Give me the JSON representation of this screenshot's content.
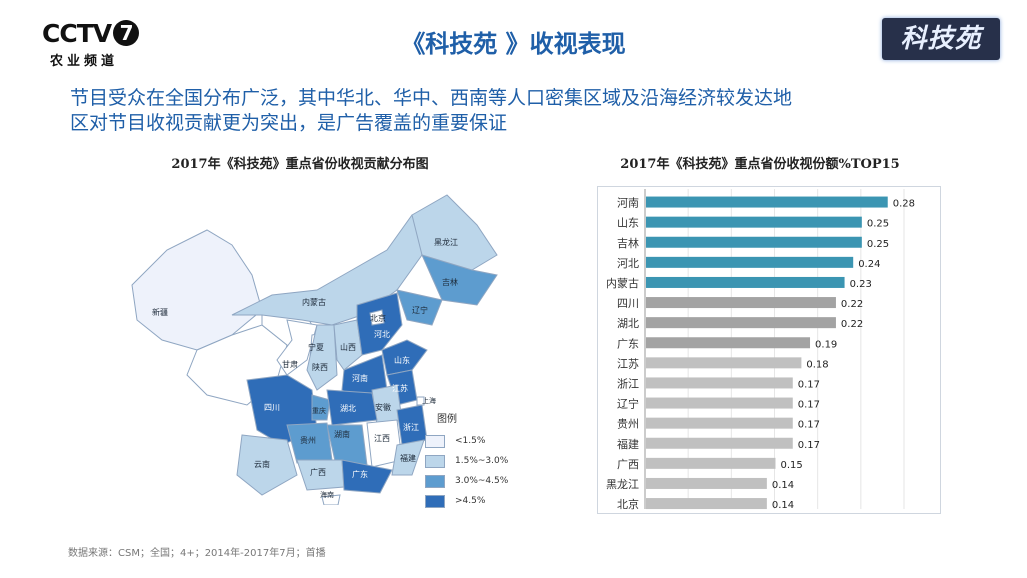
{
  "logo": {
    "main": "CCTV",
    "num": "7",
    "sub": "农业频道"
  },
  "brand": "科技苑",
  "title": "《科技苑 》收视表现",
  "subtitle_lines": [
    "节目受众在全国分布广泛，其中华北、华中、西南等人口密集区域及沿海经济较发达地",
    "区对节目收视贡献更为突出，是广告覆盖的重要保证"
  ],
  "map": {
    "title": "2017年《科技苑》重点省份收视贡献分布图",
    "legend_title": "图例",
    "legend": [
      {
        "label": "<1.5%",
        "color": "#eef2fb"
      },
      {
        "label": "1.5%~3.0%",
        "color": "#bcd6ea"
      },
      {
        "label": "3.0%~4.5%",
        "color": "#5d9ccf"
      },
      {
        "label": ">4.5%",
        "color": "#2f6db8"
      }
    ],
    "province_labels": [
      "新疆",
      "黑龙江",
      "吉林",
      "辽宁",
      "内蒙古",
      "北京",
      "河北",
      "山西",
      "山东",
      "宁夏",
      "甘肃",
      "陕西",
      "河南",
      "江苏",
      "安徽",
      "上海",
      "湖北",
      "四川",
      "重庆",
      "浙江",
      "湖南",
      "江西",
      "贵州",
      "福建",
      "云南",
      "广西",
      "广东",
      "海南"
    ]
  },
  "chart_data": {
    "type": "bar",
    "orientation": "horizontal",
    "title": "2017年《科技苑》重点省份收视份额%TOP15",
    "categories": [
      "河南",
      "山东",
      "吉林",
      "河北",
      "内蒙古",
      "四川",
      "湖北",
      "广东",
      "江苏",
      "浙江",
      "辽宁",
      "贵州",
      "福建",
      "广西",
      "黑龙江",
      "北京"
    ],
    "values": [
      0.28,
      0.25,
      0.25,
      0.24,
      0.23,
      0.22,
      0.22,
      0.19,
      0.18,
      0.17,
      0.17,
      0.17,
      0.17,
      0.15,
      0.14,
      0.14
    ],
    "colors": {
      "highlight": "#3b95b2",
      "gray": "#a3a3a3",
      "light": "#c0c0c0"
    },
    "highlight_count": 5,
    "xlim": [
      0,
      0.3
    ],
    "grid": true
  },
  "source": "数据来源：CSM；全国；4+；2014年-2017年7月；首播"
}
